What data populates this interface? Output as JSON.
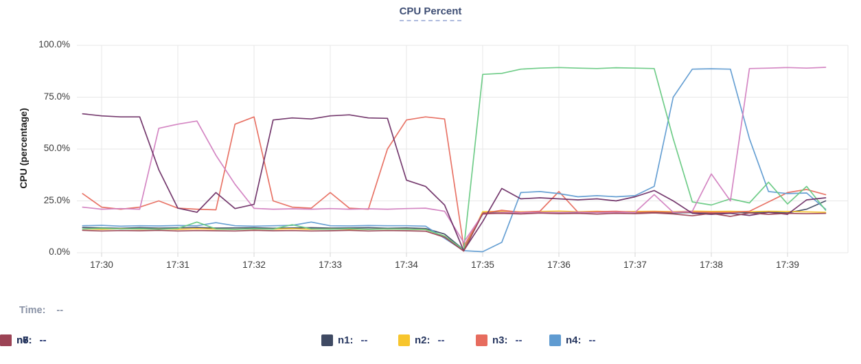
{
  "time_row": {
    "label": "Time:",
    "value": "--"
  },
  "legend": {
    "items": [
      {
        "label": "n1:",
        "value": "--"
      },
      {
        "label": "n2:",
        "value": "--"
      },
      {
        "label": "n3:",
        "value": "--"
      },
      {
        "label": "n4:",
        "value": "--"
      },
      {
        "label": "n5:",
        "value": "--"
      },
      {
        "label": "n6:",
        "value": "--"
      },
      {
        "label": "n7:",
        "value": "--"
      },
      {
        "label": "n8:",
        "value": "--"
      }
    ]
  },
  "chart_data": {
    "type": "line",
    "title": "CPU Percent",
    "xlabel": "",
    "ylabel": "CPU (percentage)",
    "ylim": [
      0,
      100
    ],
    "y_ticks": [
      "0.0%",
      "25.0%",
      "50.0%",
      "75.0%",
      "100.0%"
    ],
    "x_ticks": [
      "17:30",
      "17:31",
      "17:32",
      "17:33",
      "17:34",
      "17:35",
      "17:36",
      "17:37",
      "17:38",
      "17:39"
    ],
    "grid": true,
    "legend_position": "bottom",
    "grid_color": "#e7e7e7",
    "x": [
      "17:29:45",
      "17:30:00",
      "17:30:15",
      "17:30:30",
      "17:30:45",
      "17:31:00",
      "17:31:15",
      "17:31:30",
      "17:31:45",
      "17:32:00",
      "17:32:15",
      "17:32:30",
      "17:32:45",
      "17:33:00",
      "17:33:15",
      "17:33:30",
      "17:33:45",
      "17:34:00",
      "17:34:15",
      "17:34:30",
      "17:34:45",
      "17:35:00",
      "17:35:15",
      "17:35:30",
      "17:35:45",
      "17:36:00",
      "17:36:15",
      "17:36:30",
      "17:36:45",
      "17:37:00",
      "17:37:15",
      "17:37:30",
      "17:37:45",
      "17:38:00",
      "17:38:15",
      "17:38:30",
      "17:38:45",
      "17:39:00",
      "17:39:15",
      "17:39:30"
    ],
    "series": [
      {
        "name": "n1",
        "color": "#3f4a63",
        "values": [
          12.2,
          12,
          11.8,
          12.1,
          11.9,
          12,
          12.2,
          11.9,
          12,
          12.1,
          11.8,
          12,
          12.1,
          11.9,
          12,
          12.1,
          11.8,
          12,
          11.7,
          9,
          1.5,
          19.2,
          19.5,
          19.3,
          19.6,
          19.4,
          19.5,
          19.3,
          19.6,
          19.4,
          19.5,
          19.2,
          19.4,
          19,
          19.5,
          19.3,
          19.6,
          19.2,
          21,
          25
        ]
      },
      {
        "name": "n2",
        "color": "#f7c52d",
        "values": [
          11.5,
          11.3,
          11.6,
          11.4,
          11.5,
          11.3,
          11.6,
          11.4,
          11.3,
          11.5,
          11.4,
          11.6,
          11.3,
          11.5,
          11.4,
          11.3,
          11.5,
          11.4,
          11.2,
          8,
          1,
          19.8,
          20,
          19.7,
          19.9,
          20.1,
          19.8,
          20,
          19.7,
          19.9,
          20,
          19.8,
          20.1,
          19.9,
          20,
          19.8,
          20,
          19.9,
          19.7,
          19.5
        ]
      },
      {
        "name": "n3",
        "color": "#e76c5e",
        "values": [
          28.5,
          22,
          21,
          22,
          25,
          21.5,
          21,
          20.7,
          62,
          65.5,
          25,
          22,
          21.5,
          29,
          21.5,
          21,
          50,
          64,
          65.5,
          64.5,
          3,
          19,
          20.5,
          19.5,
          20,
          29.5,
          19.5,
          19.8,
          20,
          19.5,
          19.8,
          19.5,
          19.6,
          19.5,
          19.4,
          20,
          24.5,
          29,
          30.5,
          28
        ]
      },
      {
        "name": "n4",
        "color": "#5f9bd1",
        "values": [
          13,
          13.2,
          12.8,
          13,
          12.9,
          13.1,
          13,
          14.5,
          13,
          12.8,
          13,
          13.2,
          14.8,
          13,
          12.9,
          13.1,
          13,
          13,
          12.8,
          7,
          1,
          0.5,
          5,
          29,
          29.5,
          28.5,
          27,
          27.5,
          27,
          27.5,
          32,
          75,
          88.5,
          88.7,
          88.5,
          55,
          29.5,
          28.5,
          28.8,
          21
        ]
      },
      {
        "name": "n5",
        "color": "#67c982",
        "values": [
          11.5,
          11.8,
          11.5,
          11.6,
          11.4,
          11.7,
          14.8,
          11.5,
          11.3,
          11.6,
          11.4,
          13.5,
          11.5,
          11.4,
          11.6,
          11.3,
          11.5,
          11.4,
          11.2,
          8,
          1.5,
          86,
          86.5,
          88.5,
          89,
          89.3,
          89,
          88.8,
          89.2,
          89,
          88.8,
          55,
          24.5,
          23,
          26,
          24,
          34,
          23.5,
          32,
          20.5
        ]
      },
      {
        "name": "n6",
        "color": "#d27fc0",
        "values": [
          22,
          21,
          21.3,
          21,
          60,
          62,
          63.5,
          47,
          33,
          21.4,
          21,
          21.2,
          21,
          21.3,
          21,
          21.2,
          21,
          21.3,
          21.5,
          20,
          5,
          18.5,
          19.5,
          19.3,
          19.5,
          19.4,
          19.6,
          19.3,
          19.5,
          19.5,
          28,
          19.5,
          20,
          38,
          25,
          88.8,
          89,
          89.3,
          89,
          89.4
        ]
      },
      {
        "name": "n7",
        "color": "#6e2f66",
        "values": [
          67,
          66,
          65.5,
          65.5,
          40,
          21.5,
          19.5,
          29,
          21.3,
          23.3,
          64,
          65,
          64.5,
          66,
          66.5,
          65,
          64.8,
          35,
          32,
          23,
          1,
          15,
          31,
          26,
          26.5,
          26,
          25.5,
          26,
          25,
          27,
          30,
          25,
          19,
          18.5,
          19,
          18,
          19.5,
          18.5,
          25.5,
          26.5
        ]
      },
      {
        "name": "n8",
        "color": "#9c4355",
        "values": [
          10.8,
          10.5,
          10.7,
          10.6,
          10.8,
          10.5,
          10.7,
          10.6,
          10.5,
          10.8,
          10.6,
          10.7,
          10.5,
          10.6,
          10.8,
          10.5,
          10.7,
          10.6,
          10.4,
          7.5,
          0.8,
          18.8,
          19,
          18.7,
          19.1,
          18.8,
          19,
          18.6,
          19,
          18.8,
          19.2,
          18.7,
          17.8,
          19,
          17.5,
          19.2,
          18.5,
          19,
          18.8,
          19
        ]
      }
    ]
  }
}
